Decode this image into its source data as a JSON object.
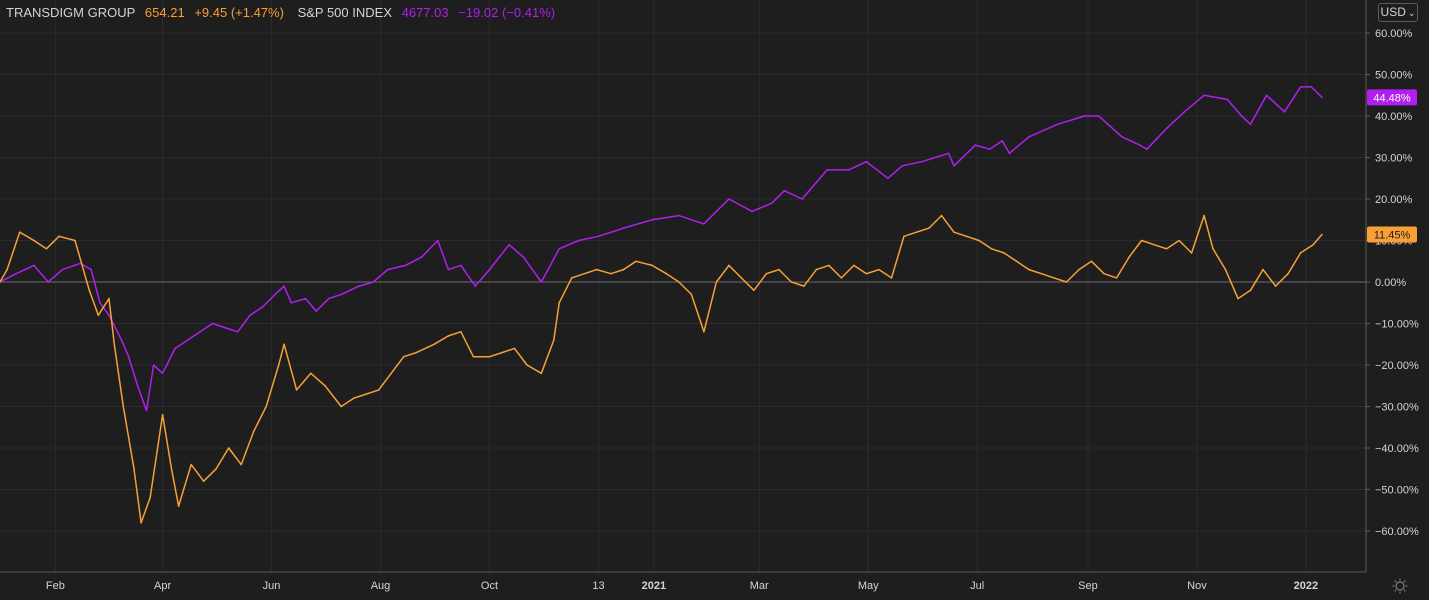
{
  "legend": {
    "series1": {
      "name": "TRANSDIGM GROUP",
      "price": "654.21",
      "change": "+9.45 (+1.47%)"
    },
    "series2": {
      "name": "S&P 500 INDEX",
      "price": "4677.03",
      "change": "−19.02 (−0.41%)"
    }
  },
  "currency_button": "USD",
  "settings_icon": "gear-icon",
  "colors": {
    "background": "#1e1e1f",
    "tdg": "#f7a035",
    "spx": "#b11ff0",
    "grid": "#2b2b2d",
    "axis_text": "#d4d4d4"
  },
  "chart_data": {
    "type": "line",
    "title": "",
    "xlabel": "",
    "ylabel": "",
    "ylim": [
      -66,
      66
    ],
    "x_range": [
      "2020-01-01",
      "2022-01-10"
    ],
    "y_ticks": [
      "60.00%",
      "50.00%",
      "40.00%",
      "30.00%",
      "20.00%",
      "10.00%",
      "0.00%",
      "−10.00%",
      "−20.00%",
      "−30.00%",
      "−40.00%",
      "−50.00%",
      "−60.00%"
    ],
    "y_tick_values": [
      60,
      50,
      40,
      30,
      20,
      10,
      0,
      -10,
      -20,
      -30,
      -40,
      -50,
      -60
    ],
    "x_ticks": [
      {
        "label": "Feb",
        "date": "2020-02-01"
      },
      {
        "label": "Apr",
        "date": "2020-04-01"
      },
      {
        "label": "Jun",
        "date": "2020-06-01"
      },
      {
        "label": "Aug",
        "date": "2020-08-01"
      },
      {
        "label": "Oct",
        "date": "2020-10-01"
      },
      {
        "label": "13",
        "date": "2020-12-01"
      },
      {
        "label": "2021",
        "date": "2021-01-01",
        "bold": true
      },
      {
        "label": "Mar",
        "date": "2021-03-01"
      },
      {
        "label": "May",
        "date": "2021-05-01"
      },
      {
        "label": "Jul",
        "date": "2021-07-01"
      },
      {
        "label": "Sep",
        "date": "2021-09-01"
      },
      {
        "label": "Nov",
        "date": "2021-11-01"
      },
      {
        "label": "2022",
        "date": "2022-01-01",
        "bold": true
      }
    ],
    "grid": true,
    "last_value_labels": {
      "spx": "44.48%",
      "tdg": "11.45%"
    },
    "series": [
      {
        "name": "S&P 500 INDEX",
        "color": "#b11ff0",
        "values": [
          [
            "2020-01-01",
            0
          ],
          [
            "2020-01-10",
            2
          ],
          [
            "2020-01-20",
            4
          ],
          [
            "2020-01-28",
            0
          ],
          [
            "2020-02-05",
            3
          ],
          [
            "2020-02-15",
            4.5
          ],
          [
            "2020-02-21",
            3
          ],
          [
            "2020-02-26",
            -5
          ],
          [
            "2020-03-02",
            -8
          ],
          [
            "2020-03-09",
            -14
          ],
          [
            "2020-03-13",
            -18
          ],
          [
            "2020-03-18",
            -25
          ],
          [
            "2020-03-23",
            -31
          ],
          [
            "2020-03-27",
            -20
          ],
          [
            "2020-04-01",
            -22
          ],
          [
            "2020-04-08",
            -16
          ],
          [
            "2020-04-15",
            -14
          ],
          [
            "2020-04-22",
            -12
          ],
          [
            "2020-04-29",
            -10
          ],
          [
            "2020-05-06",
            -11
          ],
          [
            "2020-05-13",
            -12
          ],
          [
            "2020-05-20",
            -8
          ],
          [
            "2020-05-27",
            -6
          ],
          [
            "2020-06-03",
            -3
          ],
          [
            "2020-06-08",
            -1
          ],
          [
            "2020-06-12",
            -5
          ],
          [
            "2020-06-20",
            -4
          ],
          [
            "2020-06-26",
            -7
          ],
          [
            "2020-07-03",
            -4
          ],
          [
            "2020-07-10",
            -3
          ],
          [
            "2020-07-20",
            -1
          ],
          [
            "2020-07-28",
            0
          ],
          [
            "2020-08-05",
            3
          ],
          [
            "2020-08-15",
            4
          ],
          [
            "2020-08-24",
            6
          ],
          [
            "2020-09-02",
            10
          ],
          [
            "2020-09-08",
            3
          ],
          [
            "2020-09-15",
            4
          ],
          [
            "2020-09-23",
            -1
          ],
          [
            "2020-10-01",
            3
          ],
          [
            "2020-10-12",
            9
          ],
          [
            "2020-10-20",
            6
          ],
          [
            "2020-10-30",
            0
          ],
          [
            "2020-11-09",
            8
          ],
          [
            "2020-11-20",
            10
          ],
          [
            "2020-12-01",
            11
          ],
          [
            "2020-12-15",
            13
          ],
          [
            "2020-12-31",
            15
          ],
          [
            "2021-01-15",
            16
          ],
          [
            "2021-01-29",
            14
          ],
          [
            "2021-02-12",
            20
          ],
          [
            "2021-02-25",
            17
          ],
          [
            "2021-03-08",
            19
          ],
          [
            "2021-03-15",
            22
          ],
          [
            "2021-03-25",
            20
          ],
          [
            "2021-04-08",
            27
          ],
          [
            "2021-04-20",
            27
          ],
          [
            "2021-04-30",
            29
          ],
          [
            "2021-05-12",
            25
          ],
          [
            "2021-05-20",
            28
          ],
          [
            "2021-05-31",
            29
          ],
          [
            "2021-06-15",
            31
          ],
          [
            "2021-06-18",
            28
          ],
          [
            "2021-06-30",
            33
          ],
          [
            "2021-07-08",
            32
          ],
          [
            "2021-07-15",
            34
          ],
          [
            "2021-07-19",
            31
          ],
          [
            "2021-07-30",
            35
          ],
          [
            "2021-08-15",
            38
          ],
          [
            "2021-08-30",
            40
          ],
          [
            "2021-09-07",
            40
          ],
          [
            "2021-09-20",
            35
          ],
          [
            "2021-09-30",
            33
          ],
          [
            "2021-10-04",
            32
          ],
          [
            "2021-10-15",
            37
          ],
          [
            "2021-10-25",
            41
          ],
          [
            "2021-11-05",
            45
          ],
          [
            "2021-11-18",
            44
          ],
          [
            "2021-11-26",
            40
          ],
          [
            "2021-12-01",
            38
          ],
          [
            "2021-12-10",
            45
          ],
          [
            "2021-12-20",
            41
          ],
          [
            "2021-12-29",
            47
          ],
          [
            "2022-01-04",
            47
          ],
          [
            "2022-01-10",
            44.48
          ]
        ]
      },
      {
        "name": "TRANSDIGM GROUP",
        "color": "#f7a035",
        "values": [
          [
            "2020-01-01",
            0
          ],
          [
            "2020-01-05",
            3
          ],
          [
            "2020-01-12",
            12
          ],
          [
            "2020-01-20",
            10
          ],
          [
            "2020-01-27",
            8
          ],
          [
            "2020-02-03",
            11
          ],
          [
            "2020-02-12",
            10
          ],
          [
            "2020-02-20",
            -2
          ],
          [
            "2020-02-25",
            -8
          ],
          [
            "2020-03-02",
            -4
          ],
          [
            "2020-03-05",
            -15
          ],
          [
            "2020-03-10",
            -30
          ],
          [
            "2020-03-16",
            -45
          ],
          [
            "2020-03-20",
            -58
          ],
          [
            "2020-03-25",
            -52
          ],
          [
            "2020-04-01",
            -32
          ],
          [
            "2020-04-06",
            -45
          ],
          [
            "2020-04-10",
            -54
          ],
          [
            "2020-04-17",
            -44
          ],
          [
            "2020-04-24",
            -48
          ],
          [
            "2020-05-01",
            -45
          ],
          [
            "2020-05-08",
            -40
          ],
          [
            "2020-05-15",
            -44
          ],
          [
            "2020-05-22",
            -36
          ],
          [
            "2020-05-29",
            -30
          ],
          [
            "2020-06-05",
            -20
          ],
          [
            "2020-06-08",
            -15
          ],
          [
            "2020-06-15",
            -26
          ],
          [
            "2020-06-23",
            -22
          ],
          [
            "2020-07-01",
            -25
          ],
          [
            "2020-07-10",
            -30
          ],
          [
            "2020-07-17",
            -28
          ],
          [
            "2020-07-24",
            -27
          ],
          [
            "2020-07-31",
            -26
          ],
          [
            "2020-08-07",
            -22
          ],
          [
            "2020-08-14",
            -18
          ],
          [
            "2020-08-21",
            -17
          ],
          [
            "2020-08-31",
            -15
          ],
          [
            "2020-09-08",
            -13
          ],
          [
            "2020-09-15",
            -12
          ],
          [
            "2020-09-22",
            -18
          ],
          [
            "2020-10-01",
            -18
          ],
          [
            "2020-10-08",
            -17
          ],
          [
            "2020-10-15",
            -16
          ],
          [
            "2020-10-22",
            -20
          ],
          [
            "2020-10-30",
            -22
          ],
          [
            "2020-11-06",
            -14
          ],
          [
            "2020-11-09",
            -5
          ],
          [
            "2020-11-16",
            1
          ],
          [
            "2020-11-30",
            3
          ],
          [
            "2020-12-08",
            2
          ],
          [
            "2020-12-15",
            3
          ],
          [
            "2020-12-22",
            5
          ],
          [
            "2020-12-31",
            4
          ],
          [
            "2021-01-08",
            2
          ],
          [
            "2021-01-15",
            0
          ],
          [
            "2021-01-22",
            -3
          ],
          [
            "2021-01-29",
            -12
          ],
          [
            "2021-02-05",
            0
          ],
          [
            "2021-02-12",
            4
          ],
          [
            "2021-02-19",
            1
          ],
          [
            "2021-02-26",
            -2
          ],
          [
            "2021-03-05",
            2
          ],
          [
            "2021-03-12",
            3
          ],
          [
            "2021-03-19",
            0
          ],
          [
            "2021-03-26",
            -1
          ],
          [
            "2021-04-02",
            3
          ],
          [
            "2021-04-09",
            4
          ],
          [
            "2021-04-16",
            1
          ],
          [
            "2021-04-23",
            4
          ],
          [
            "2021-04-30",
            2
          ],
          [
            "2021-05-07",
            3
          ],
          [
            "2021-05-14",
            1
          ],
          [
            "2021-05-21",
            11
          ],
          [
            "2021-05-28",
            12
          ],
          [
            "2021-06-04",
            13
          ],
          [
            "2021-06-11",
            16
          ],
          [
            "2021-06-18",
            12
          ],
          [
            "2021-06-25",
            11
          ],
          [
            "2021-07-02",
            10
          ],
          [
            "2021-07-09",
            8
          ],
          [
            "2021-07-16",
            7
          ],
          [
            "2021-07-23",
            5
          ],
          [
            "2021-07-30",
            3
          ],
          [
            "2021-08-06",
            2
          ],
          [
            "2021-08-13",
            1
          ],
          [
            "2021-08-20",
            0
          ],
          [
            "2021-08-27",
            3
          ],
          [
            "2021-09-03",
            5
          ],
          [
            "2021-09-10",
            2
          ],
          [
            "2021-09-17",
            1
          ],
          [
            "2021-09-24",
            6
          ],
          [
            "2021-10-01",
            10
          ],
          [
            "2021-10-08",
            9
          ],
          [
            "2021-10-15",
            8
          ],
          [
            "2021-10-22",
            10
          ],
          [
            "2021-10-29",
            7
          ],
          [
            "2021-11-05",
            16
          ],
          [
            "2021-11-10",
            8
          ],
          [
            "2021-11-17",
            3
          ],
          [
            "2021-11-24",
            -4
          ],
          [
            "2021-12-01",
            -2
          ],
          [
            "2021-12-08",
            3
          ],
          [
            "2021-12-15",
            -1
          ],
          [
            "2021-12-22",
            2
          ],
          [
            "2021-12-29",
            7
          ],
          [
            "2022-01-05",
            9
          ],
          [
            "2022-01-10",
            11.45
          ]
        ]
      }
    ]
  }
}
